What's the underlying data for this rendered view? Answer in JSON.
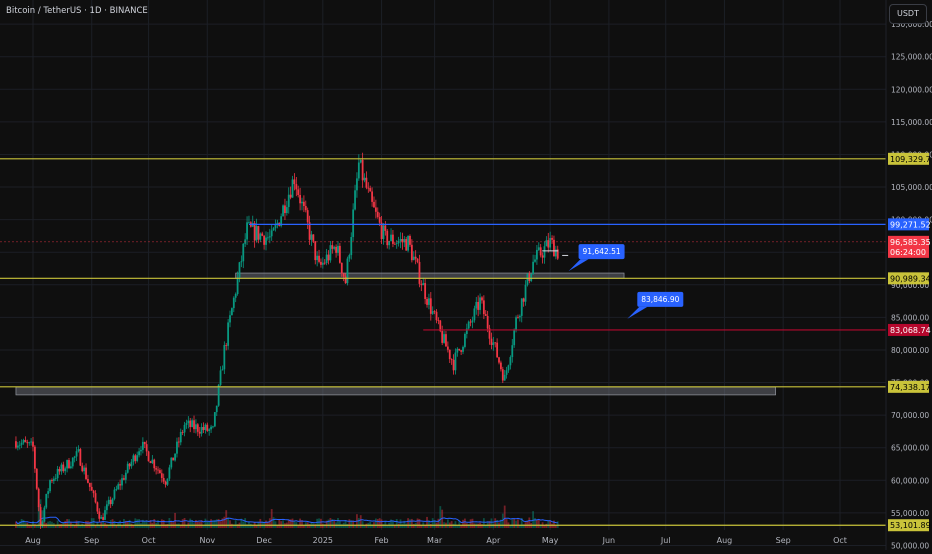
{
  "header": {
    "title": "Bitcoin / TetherUS · 1D · BINANCE",
    "currency_label": "USDT"
  },
  "chart_data": {
    "type": "candlestick",
    "symbol": "Bitcoin / TetherUS",
    "interval": "1D",
    "exchange": "BINANCE",
    "y_ticks": [
      130000,
      125000,
      120000,
      115000,
      110000,
      105000,
      100000,
      95000,
      90000,
      85000,
      80000,
      75000,
      70000,
      65000,
      60000,
      55000,
      50000
    ],
    "y_tick_labels": [
      "130,000.00",
      "125,000.00",
      "120,000.00",
      "115,000.00",
      "110,000.00",
      "105,000.00",
      "100,000.00",
      "95,000.00",
      "90,000.00",
      "85,000.00",
      "80,000.00",
      "75,000.00",
      "70,000.00",
      "65,000.00",
      "60,000.00",
      "55,000.00",
      "50,000.00"
    ],
    "ylim": [
      49300,
      133700
    ],
    "x_labels": [
      "Aug",
      "Sep",
      "Oct",
      "Nov",
      "Dec",
      "2025",
      "Feb",
      "Mar",
      "Apr",
      "May",
      "Jun",
      "Jul",
      "Aug",
      "Sep",
      "Oct"
    ],
    "price_series": [
      {
        "date": "2024-07-23",
        "price": 66000
      },
      {
        "date": "2024-08-01",
        "price": 65000
      },
      {
        "date": "2024-08-05",
        "price": 53000
      },
      {
        "date": "2024-08-10",
        "price": 60000
      },
      {
        "date": "2024-08-25",
        "price": 64000
      },
      {
        "date": "2024-09-06",
        "price": 54000
      },
      {
        "date": "2024-09-15",
        "price": 59000
      },
      {
        "date": "2024-09-27",
        "price": 65500
      },
      {
        "date": "2024-10-10",
        "price": 60000
      },
      {
        "date": "2024-10-20",
        "price": 68500
      },
      {
        "date": "2024-11-04",
        "price": 67500
      },
      {
        "date": "2024-11-10",
        "price": 80000
      },
      {
        "date": "2024-11-22",
        "price": 98500
      },
      {
        "date": "2024-12-05",
        "price": 97000
      },
      {
        "date": "2024-12-17",
        "price": 106500
      },
      {
        "date": "2024-12-30",
        "price": 92500
      },
      {
        "date": "2025-01-08",
        "price": 96000
      },
      {
        "date": "2025-01-13",
        "price": 90500
      },
      {
        "date": "2025-01-20",
        "price": 108500
      },
      {
        "date": "2025-01-27",
        "price": 102000
      },
      {
        "date": "2025-02-03",
        "price": 97000
      },
      {
        "date": "2025-02-15",
        "price": 96500
      },
      {
        "date": "2025-02-25",
        "price": 88000
      },
      {
        "date": "2025-03-04",
        "price": 82500
      },
      {
        "date": "2025-03-11",
        "price": 78000
      },
      {
        "date": "2025-03-25",
        "price": 87500
      },
      {
        "date": "2025-04-07",
        "price": 75500
      },
      {
        "date": "2025-04-13",
        "price": 84500
      },
      {
        "date": "2025-04-22",
        "price": 93500
      },
      {
        "date": "2025-05-01",
        "price": 96500
      },
      {
        "date": "2025-05-05",
        "price": 95000
      }
    ],
    "volume_series": [
      {
        "date": "2024-08-05",
        "volume": 0.75
      },
      {
        "date": "2024-09-06",
        "volume": 0.32
      },
      {
        "date": "2024-10-15",
        "volume": 0.35
      },
      {
        "date": "2024-11-12",
        "volume": 0.95
      },
      {
        "date": "2024-12-05",
        "volume": 0.7
      },
      {
        "date": "2025-01-20",
        "volume": 0.68
      },
      {
        "date": "2025-02-25",
        "volume": 0.45
      },
      {
        "date": "2025-03-04",
        "volume": 0.62
      },
      {
        "date": "2025-04-07",
        "volume": 0.55
      },
      {
        "date": "2025-04-22",
        "volume": 0.72
      }
    ],
    "horizontal_levels": [
      {
        "label": "109,329.77",
        "price": 109329.77,
        "color": "#c9c33a",
        "text_color": "#000000",
        "line": "full"
      },
      {
        "label": "99,271.52",
        "price": 99271.52,
        "color": "#2962ff",
        "text_color": "#ffffff",
        "line": "partial"
      },
      {
        "label": "90,989.34",
        "price": 90989.34,
        "color": "#c9c33a",
        "text_color": "#000000",
        "line": "full"
      },
      {
        "label": "83,068.74",
        "price": 83068.74,
        "color": "#b5082d",
        "text_color": "#ffffff",
        "line": "partial"
      },
      {
        "label": "74,338.17",
        "price": 74338.17,
        "color": "#c9c33a",
        "text_color": "#000000",
        "line": "full"
      },
      {
        "label": "53,101.89",
        "price": 53101.89,
        "color": "#c9c33a",
        "text_color": "#000000",
        "line": "full"
      }
    ],
    "last_price": {
      "label": "96,585.35",
      "countdown": "06:24:00",
      "price": 96585.35,
      "color": "#f23645"
    },
    "zones": [
      {
        "from": 91000,
        "to": 91800,
        "start": "2024-11-16",
        "end": "2025-06-09"
      },
      {
        "from": 73100,
        "to": 74300,
        "start": "2024-07-23",
        "end": "2025-08-28"
      }
    ],
    "callouts": [
      {
        "label": "91,642.51",
        "color": "#2962ff",
        "price": 91642.51
      },
      {
        "label": "83,846.90",
        "color": "#2962ff",
        "price": 83846.9
      }
    ],
    "colors": {
      "up": "#089981",
      "down": "#f23645",
      "volume_ma": "#2962ff",
      "grid": "#1c1f26"
    }
  }
}
